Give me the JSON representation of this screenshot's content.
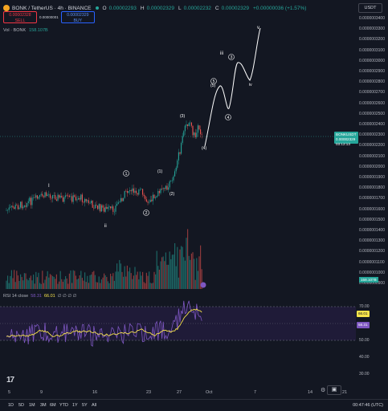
{
  "header": {
    "symbol": "BONK / TetherUS · 4h · BINANCE",
    "ohlc": [
      {
        "key": "O",
        "value": "0.00002293"
      },
      {
        "key": "H",
        "value": "0.00002329"
      },
      {
        "key": "L",
        "value": "0.00002232"
      },
      {
        "key": "C",
        "value": "0.00002329"
      },
      {
        "key": "",
        "value": "+0.00000036 (+1.57%)"
      }
    ]
  },
  "trade": {
    "sell_price": "0.00002328",
    "sell_label": "SELL",
    "spread": "0.00000001",
    "buy_price": "0.00002329",
    "buy_label": "BUY"
  },
  "volume": {
    "label": "Vol · BONK",
    "value": "158.107B"
  },
  "currency": "USDT",
  "price_axis": {
    "ticks": [
      "0.0000003400",
      "0.0000003300",
      "0.0000003200",
      "0.0000003100",
      "0.0000003000",
      "0.0000002900",
      "0.0000002800",
      "0.0000002700",
      "0.0000002600",
      "0.0000002500",
      "0.0000002400",
      "0.0000002300",
      "0.0000002200",
      "0.0000002100",
      "0.0000002000",
      "0.0000001900",
      "0.0000001800",
      "0.0000001700",
      "0.0000001600",
      "0.0000001500",
      "0.0000001400",
      "0.0000001300",
      "0.0000001200",
      "0.0000001100",
      "0.0000001000",
      "0.0000000900"
    ],
    "price_tag_symbol": "BONKUSDT",
    "price_tag_value": "0.00002329",
    "price_tag_countdown": "03:12:13",
    "volume_tag": "158.107B"
  },
  "rsi": {
    "label": "RSI 14 close",
    "value1": "58.31",
    "value2": "66.01",
    "extra": "∅ ∅ ∅ ∅",
    "ticks": [
      "70.00",
      "50.00",
      "40.00",
      "30.00"
    ],
    "tag1": "66.01",
    "tag2": "58.31",
    "colors": {
      "rsi": "#7e57c2",
      "ma": "#f7e34b"
    }
  },
  "wave_labels": {
    "I": "I",
    "ii": "ii",
    "iii": "iii",
    "v": "v",
    "iv": "iv",
    "c1": "1",
    "c2": "2",
    "p1": "(1)",
    "p2": "(2)",
    "p3": "(3)",
    "p4": "(4)",
    "p5": "(5)",
    "c3": "3",
    "c4": "4",
    "c5": "5"
  },
  "time_axis": [
    "5",
    "9",
    "16",
    "23",
    "27",
    "Oct",
    "7",
    "14",
    "21"
  ],
  "ranges": [
    "1D",
    "5D",
    "1M",
    "3M",
    "6M",
    "YTD",
    "1Y",
    "5Y",
    "All"
  ],
  "clock": "00:47:46 (UTC)",
  "logo": "17",
  "colors": {
    "up": "#26a69a",
    "down": "#ef5350",
    "bg": "#131722",
    "wave": "#ffffff"
  }
}
